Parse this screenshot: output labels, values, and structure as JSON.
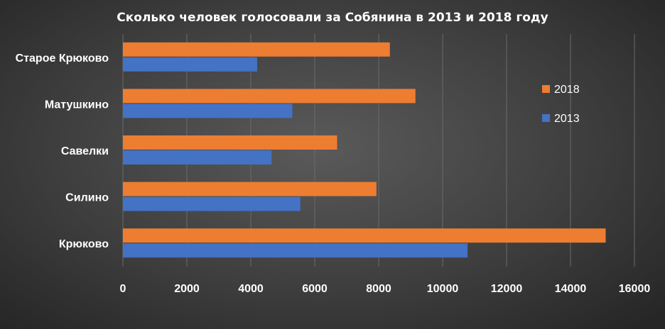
{
  "chart_data": {
    "type": "bar",
    "orientation": "horizontal",
    "title": "Сколько  человек  голосовали  за Собянина  в 2013 и 2018 году",
    "categories": [
      "Старое  Крюково",
      "Матушкино",
      "Савелки",
      "Силино",
      "Крюково"
    ],
    "series": [
      {
        "name": "2018",
        "color": "#ed7d31",
        "values": [
          8350,
          9150,
          6700,
          7930,
          15100
        ]
      },
      {
        "name": "2013",
        "color": "#4472c4",
        "values": [
          4200,
          5300,
          4650,
          5550,
          10780
        ]
      }
    ],
    "xlim": [
      0,
      16000
    ],
    "xticks": [
      "0",
      "2000",
      "4000",
      "6000",
      "8000",
      "10000",
      "12000",
      "14000",
      "16000"
    ],
    "grid": true,
    "legend_position": "right"
  }
}
